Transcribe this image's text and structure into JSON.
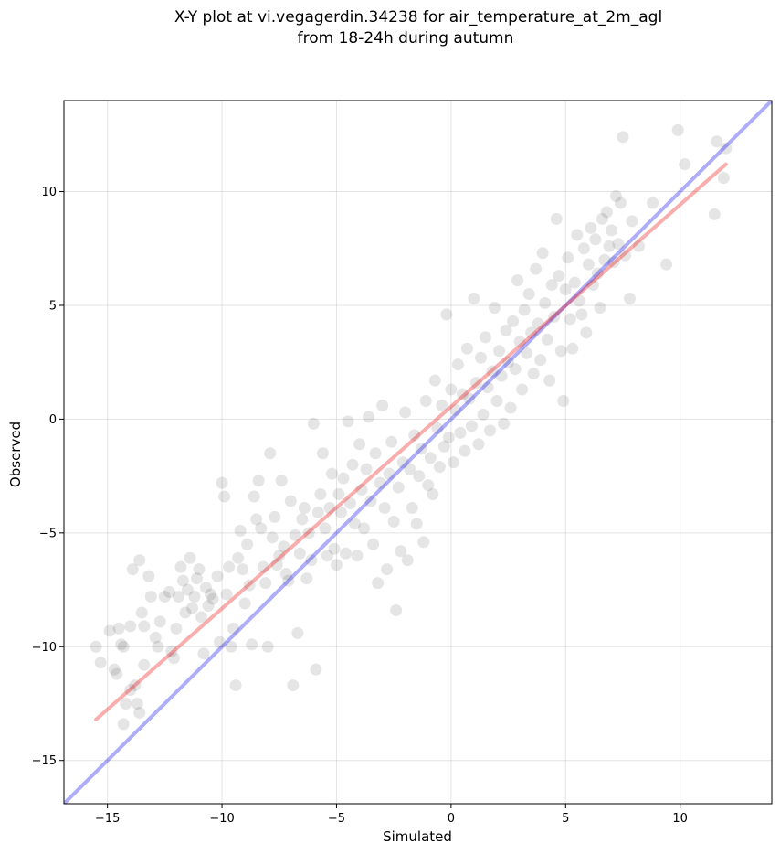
{
  "chart_data": {
    "type": "scatter",
    "title": "X-Y plot at vi.vegagerdin.34238 for air_temperature_at_2m_agl",
    "subtitle": "from 18-24h during autumn",
    "xlabel": "Simulated",
    "ylabel": "Observed",
    "xlim": [
      -16.9,
      14.0
    ],
    "ylim": [
      -16.9,
      14.0
    ],
    "x_ticks": [
      -15,
      -10,
      -5,
      0,
      5,
      10
    ],
    "y_ticks": [
      -15,
      -10,
      -5,
      0,
      5,
      10
    ],
    "x_tick_labels": [
      "−15",
      "−10",
      "−5",
      "0",
      "5",
      "10"
    ],
    "y_tick_labels": [
      "−15",
      "−10",
      "−5",
      "0",
      "5",
      "10"
    ],
    "grid": true,
    "points": [
      [
        -15.5,
        -10.0
      ],
      [
        -15.3,
        -10.7
      ],
      [
        -14.9,
        -9.3
      ],
      [
        -14.7,
        -11.0
      ],
      [
        -14.6,
        -11.2
      ],
      [
        -14.5,
        -9.2
      ],
      [
        -14.4,
        -9.9
      ],
      [
        -14.3,
        -10.0
      ],
      [
        -14.3,
        -13.4
      ],
      [
        -14.2,
        -12.5
      ],
      [
        -14.0,
        -9.1
      ],
      [
        -14.0,
        -11.9
      ],
      [
        -13.9,
        -6.6
      ],
      [
        -13.8,
        -11.7
      ],
      [
        -13.7,
        -12.5
      ],
      [
        -13.6,
        -12.9
      ],
      [
        -13.6,
        -6.2
      ],
      [
        -13.5,
        -8.5
      ],
      [
        -13.4,
        -9.1
      ],
      [
        -13.4,
        -10.8
      ],
      [
        -13.2,
        -6.9
      ],
      [
        -13.1,
        -7.8
      ],
      [
        -12.9,
        -9.6
      ],
      [
        -12.8,
        -10.0
      ],
      [
        -12.7,
        -8.9
      ],
      [
        -12.5,
        -7.8
      ],
      [
        -12.3,
        -7.6
      ],
      [
        -12.2,
        -10.2
      ],
      [
        -12.1,
        -10.5
      ],
      [
        -12.0,
        -9.2
      ],
      [
        -11.9,
        -7.8
      ],
      [
        -11.8,
        -6.5
      ],
      [
        -11.7,
        -7.1
      ],
      [
        -11.6,
        -8.5
      ],
      [
        -11.5,
        -7.5
      ],
      [
        -11.4,
        -6.1
      ],
      [
        -11.3,
        -8.3
      ],
      [
        -11.2,
        -7.8
      ],
      [
        -11.1,
        -7.0
      ],
      [
        -11.0,
        -6.6
      ],
      [
        -10.9,
        -8.7
      ],
      [
        -10.8,
        -10.3
      ],
      [
        -10.7,
        -7.4
      ],
      [
        -10.6,
        -8.2
      ],
      [
        -10.5,
        -7.7
      ],
      [
        -10.4,
        -7.9
      ],
      [
        -10.2,
        -6.9
      ],
      [
        -10.1,
        -9.8
      ],
      [
        -10.0,
        -2.8
      ],
      [
        -9.9,
        -3.4
      ],
      [
        -9.8,
        -7.7
      ],
      [
        -9.7,
        -6.5
      ],
      [
        -9.6,
        -10.0
      ],
      [
        -9.5,
        -9.2
      ],
      [
        -9.4,
        -11.7
      ],
      [
        -9.3,
        -6.1
      ],
      [
        -9.2,
        -4.9
      ],
      [
        -9.1,
        -6.6
      ],
      [
        -9.0,
        -8.1
      ],
      [
        -8.9,
        -5.5
      ],
      [
        -8.8,
        -7.3
      ],
      [
        -8.7,
        -9.9
      ],
      [
        -8.6,
        -3.4
      ],
      [
        -8.5,
        -4.4
      ],
      [
        -8.4,
        -2.7
      ],
      [
        -8.3,
        -4.8
      ],
      [
        -8.2,
        -6.5
      ],
      [
        -8.1,
        -7.2
      ],
      [
        -8.0,
        -10.0
      ],
      [
        -7.9,
        -1.5
      ],
      [
        -7.8,
        -5.2
      ],
      [
        -7.7,
        -4.3
      ],
      [
        -7.6,
        -6.4
      ],
      [
        -7.5,
        -6.0
      ],
      [
        -7.4,
        -2.7
      ],
      [
        -7.3,
        -5.6
      ],
      [
        -7.2,
        -6.8
      ],
      [
        -7.1,
        -7.1
      ],
      [
        -7.0,
        -3.6
      ],
      [
        -6.9,
        -11.7
      ],
      [
        -6.8,
        -5.1
      ],
      [
        -6.7,
        -9.4
      ],
      [
        -6.6,
        -5.9
      ],
      [
        -6.5,
        -4.4
      ],
      [
        -6.4,
        -3.9
      ],
      [
        -6.3,
        -7.0
      ],
      [
        -6.2,
        -5.0
      ],
      [
        -6.1,
        -6.2
      ],
      [
        -6.0,
        -0.2
      ],
      [
        -5.9,
        -11.0
      ],
      [
        -5.8,
        -4.1
      ],
      [
        -5.7,
        -3.3
      ],
      [
        -5.6,
        -1.5
      ],
      [
        -5.5,
        -4.8
      ],
      [
        -5.4,
        -6.0
      ],
      [
        -5.3,
        -3.9
      ],
      [
        -5.2,
        -2.4
      ],
      [
        -5.1,
        -5.7
      ],
      [
        -5.0,
        -6.4
      ],
      [
        -4.9,
        -3.3
      ],
      [
        -4.8,
        -4.1
      ],
      [
        -4.7,
        -2.6
      ],
      [
        -4.6,
        -5.9
      ],
      [
        -4.5,
        -0.1
      ],
      [
        -4.4,
        -3.7
      ],
      [
        -4.3,
        -2.0
      ],
      [
        -4.2,
        -4.6
      ],
      [
        -4.1,
        -6.0
      ],
      [
        -4.0,
        -1.1
      ],
      [
        -3.9,
        -3.1
      ],
      [
        -3.8,
        -4.8
      ],
      [
        -3.7,
        -2.2
      ],
      [
        -3.6,
        0.1
      ],
      [
        -3.5,
        -3.6
      ],
      [
        -3.4,
        -5.5
      ],
      [
        -3.3,
        -1.5
      ],
      [
        -3.2,
        -7.2
      ],
      [
        -3.1,
        -2.8
      ],
      [
        -3.0,
        0.6
      ],
      [
        -2.9,
        -3.9
      ],
      [
        -2.8,
        -6.6
      ],
      [
        -2.7,
        -2.4
      ],
      [
        -2.6,
        -1.0
      ],
      [
        -2.5,
        -4.5
      ],
      [
        -2.4,
        -8.4
      ],
      [
        -2.3,
        -3.0
      ],
      [
        -2.2,
        -5.8
      ],
      [
        -2.1,
        -1.9
      ],
      [
        -2.0,
        0.3
      ],
      [
        -1.9,
        -6.2
      ],
      [
        -1.8,
        -2.2
      ],
      [
        -1.7,
        -3.9
      ],
      [
        -1.6,
        -0.7
      ],
      [
        -1.5,
        -4.6
      ],
      [
        -1.4,
        -2.5
      ],
      [
        -1.3,
        -1.3
      ],
      [
        -1.2,
        -5.4
      ],
      [
        -1.1,
        0.8
      ],
      [
        -1.0,
        -2.9
      ],
      [
        -0.9,
        -1.7
      ],
      [
        -0.8,
        -3.3
      ],
      [
        -0.7,
        1.7
      ],
      [
        -0.6,
        -0.4
      ],
      [
        -0.5,
        -2.1
      ],
      [
        -0.4,
        0.6
      ],
      [
        -0.3,
        -1.2
      ],
      [
        -0.2,
        4.6
      ],
      [
        -0.1,
        -0.8
      ],
      [
        0.0,
        1.3
      ],
      [
        0.1,
        -1.9
      ],
      [
        0.2,
        0.4
      ],
      [
        0.3,
        2.4
      ],
      [
        0.4,
        -0.6
      ],
      [
        0.5,
        1.1
      ],
      [
        0.6,
        -1.4
      ],
      [
        0.7,
        3.1
      ],
      [
        0.8,
        0.9
      ],
      [
        0.9,
        -0.3
      ],
      [
        1.0,
        5.3
      ],
      [
        1.1,
        1.6
      ],
      [
        1.2,
        -1.1
      ],
      [
        1.3,
        2.7
      ],
      [
        1.4,
        0.2
      ],
      [
        1.5,
        3.6
      ],
      [
        1.6,
        1.4
      ],
      [
        1.7,
        -0.5
      ],
      [
        1.8,
        2.1
      ],
      [
        1.9,
        4.9
      ],
      [
        2.0,
        0.8
      ],
      [
        2.1,
        3.0
      ],
      [
        2.2,
        1.9
      ],
      [
        2.3,
        -0.2
      ],
      [
        2.4,
        3.9
      ],
      [
        2.5,
        2.5
      ],
      [
        2.6,
        0.5
      ],
      [
        2.7,
        4.3
      ],
      [
        2.8,
        2.2
      ],
      [
        2.9,
        6.1
      ],
      [
        3.0,
        3.4
      ],
      [
        3.1,
        1.3
      ],
      [
        3.2,
        4.8
      ],
      [
        3.3,
        2.9
      ],
      [
        3.4,
        5.5
      ],
      [
        3.5,
        3.8
      ],
      [
        3.6,
        2.0
      ],
      [
        3.7,
        6.6
      ],
      [
        3.8,
        4.2
      ],
      [
        3.9,
        2.6
      ],
      [
        4.0,
        7.3
      ],
      [
        4.1,
        5.1
      ],
      [
        4.2,
        3.5
      ],
      [
        4.3,
        1.7
      ],
      [
        4.4,
        5.9
      ],
      [
        4.5,
        4.5
      ],
      [
        4.6,
        8.8
      ],
      [
        4.7,
        6.3
      ],
      [
        4.8,
        3.0
      ],
      [
        4.9,
        0.8
      ],
      [
        5.0,
        5.7
      ],
      [
        5.1,
        7.1
      ],
      [
        5.2,
        4.4
      ],
      [
        5.3,
        3.1
      ],
      [
        5.4,
        6.0
      ],
      [
        5.5,
        8.1
      ],
      [
        5.6,
        5.2
      ],
      [
        5.7,
        4.6
      ],
      [
        5.8,
        7.5
      ],
      [
        5.9,
        3.8
      ],
      [
        6.0,
        6.8
      ],
      [
        6.1,
        8.4
      ],
      [
        6.2,
        5.9
      ],
      [
        6.3,
        7.9
      ],
      [
        6.4,
        6.4
      ],
      [
        6.5,
        4.9
      ],
      [
        6.6,
        8.8
      ],
      [
        6.7,
        7.0
      ],
      [
        6.8,
        9.1
      ],
      [
        6.9,
        7.6
      ],
      [
        7.0,
        8.3
      ],
      [
        7.1,
        6.9
      ],
      [
        7.2,
        9.8
      ],
      [
        7.3,
        7.7
      ],
      [
        7.4,
        9.5
      ],
      [
        7.5,
        12.4
      ],
      [
        7.6,
        7.2
      ],
      [
        7.8,
        5.3
      ],
      [
        7.9,
        8.7
      ],
      [
        8.2,
        7.6
      ],
      [
        8.8,
        9.5
      ],
      [
        9.4,
        6.8
      ],
      [
        9.9,
        12.7
      ],
      [
        10.2,
        11.2
      ],
      [
        11.5,
        9.0
      ],
      [
        11.6,
        12.2
      ],
      [
        11.9,
        10.6
      ],
      [
        12.0,
        11.9
      ]
    ],
    "identity_line": {
      "x": [
        -16.9,
        14.0
      ],
      "y": [
        -16.9,
        14.0
      ],
      "color": "#0000ee"
    },
    "fit_line": {
      "x": [
        -15.5,
        12.0
      ],
      "y": [
        -13.2,
        11.2
      ],
      "color": "#ee0000"
    },
    "point_color": "#000000"
  }
}
